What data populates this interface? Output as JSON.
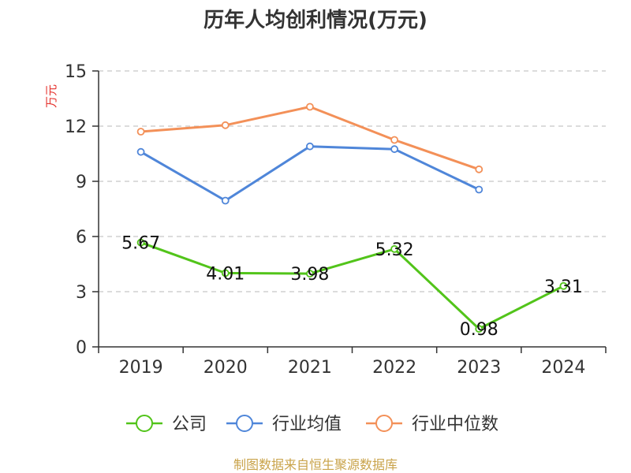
{
  "footer": "制图数据来自恒生聚源数据库",
  "colors": {
    "公司": "#52c41a",
    "行业均值": "#4f86d9",
    "行业中位数": "#f39058",
    "grid": "#c8c8c8",
    "axis": "#333333"
  },
  "chart_data": {
    "type": "line",
    "title": "历年人均创利情况(万元)",
    "ylabel": "万元",
    "xlabel": "",
    "ylim": [
      0,
      15
    ],
    "yticks": [
      0,
      3,
      6,
      9,
      12,
      15
    ],
    "categories": [
      "2019",
      "2020",
      "2021",
      "2022",
      "2023",
      "2024"
    ],
    "grid": true,
    "legend_position": "bottom",
    "series": [
      {
        "name": "公司",
        "values": [
          5.67,
          4.01,
          3.98,
          5.32,
          0.98,
          3.31
        ],
        "labels": [
          "5.67",
          "4.01",
          "3.98",
          "5.32",
          "0.98",
          "3.31"
        ]
      },
      {
        "name": "行业均值",
        "values": [
          10.6,
          7.95,
          10.9,
          10.75,
          8.55,
          null
        ]
      },
      {
        "name": "行业中位数",
        "values": [
          11.7,
          12.05,
          13.05,
          11.25,
          9.65,
          null
        ]
      }
    ]
  }
}
